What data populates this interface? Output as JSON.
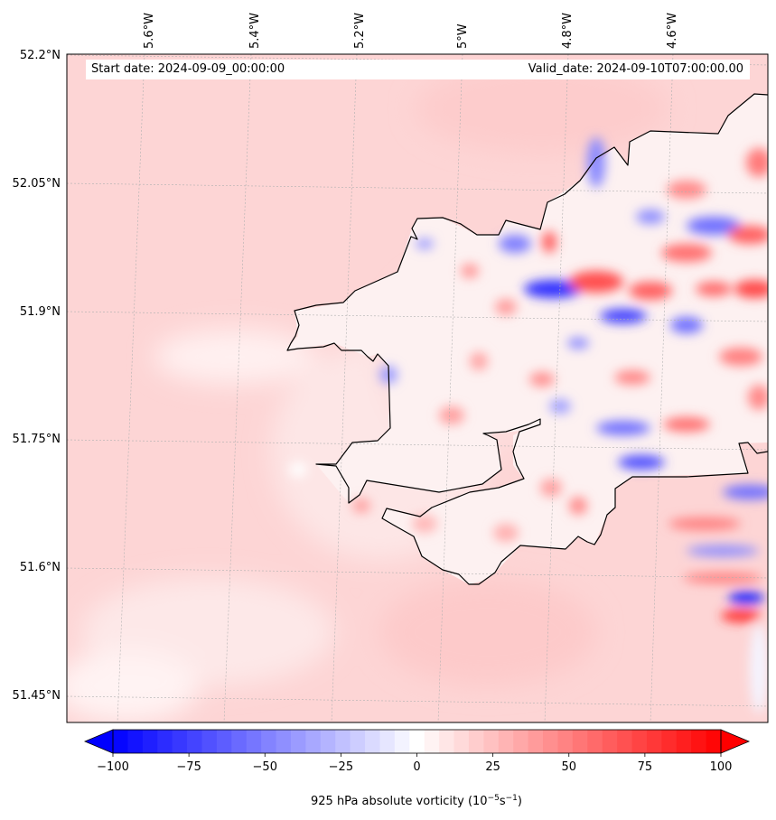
{
  "header": {
    "start_date_label": "Start date: 2024-09-09_00:00:00",
    "valid_date_label": "Valid_date: 2024-09-10T07:00:00.00"
  },
  "map": {
    "region": "Pembrokeshire coast, Wales",
    "longitude_ticks": [
      "5.6°W",
      "5.4°W",
      "5.2°W",
      "5°W",
      "4.8°W",
      "4.6°W"
    ],
    "latitude_ticks": [
      "52.2°N",
      "52.05°N",
      "51.9°N",
      "51.75°N",
      "51.6°N",
      "51.45°N"
    ],
    "colors": {
      "land_background": "#fde6e6",
      "sea_background": "#fdd3d3",
      "coastline": "#000000",
      "gridline": "#b0b0b0",
      "positive": "#ff0000",
      "negative": "#0000ff"
    }
  },
  "colorbar": {
    "ticks": [
      "−100",
      "−75",
      "−50",
      "−25",
      "0",
      "25",
      "50",
      "75",
      "100"
    ],
    "min": -100,
    "max": 100,
    "levels": 41,
    "label_main": "925 hPa absolute vorticity (10",
    "label_exp1": "−5",
    "label_mid": "s",
    "label_exp2": "−1",
    "label_end": ")"
  }
}
